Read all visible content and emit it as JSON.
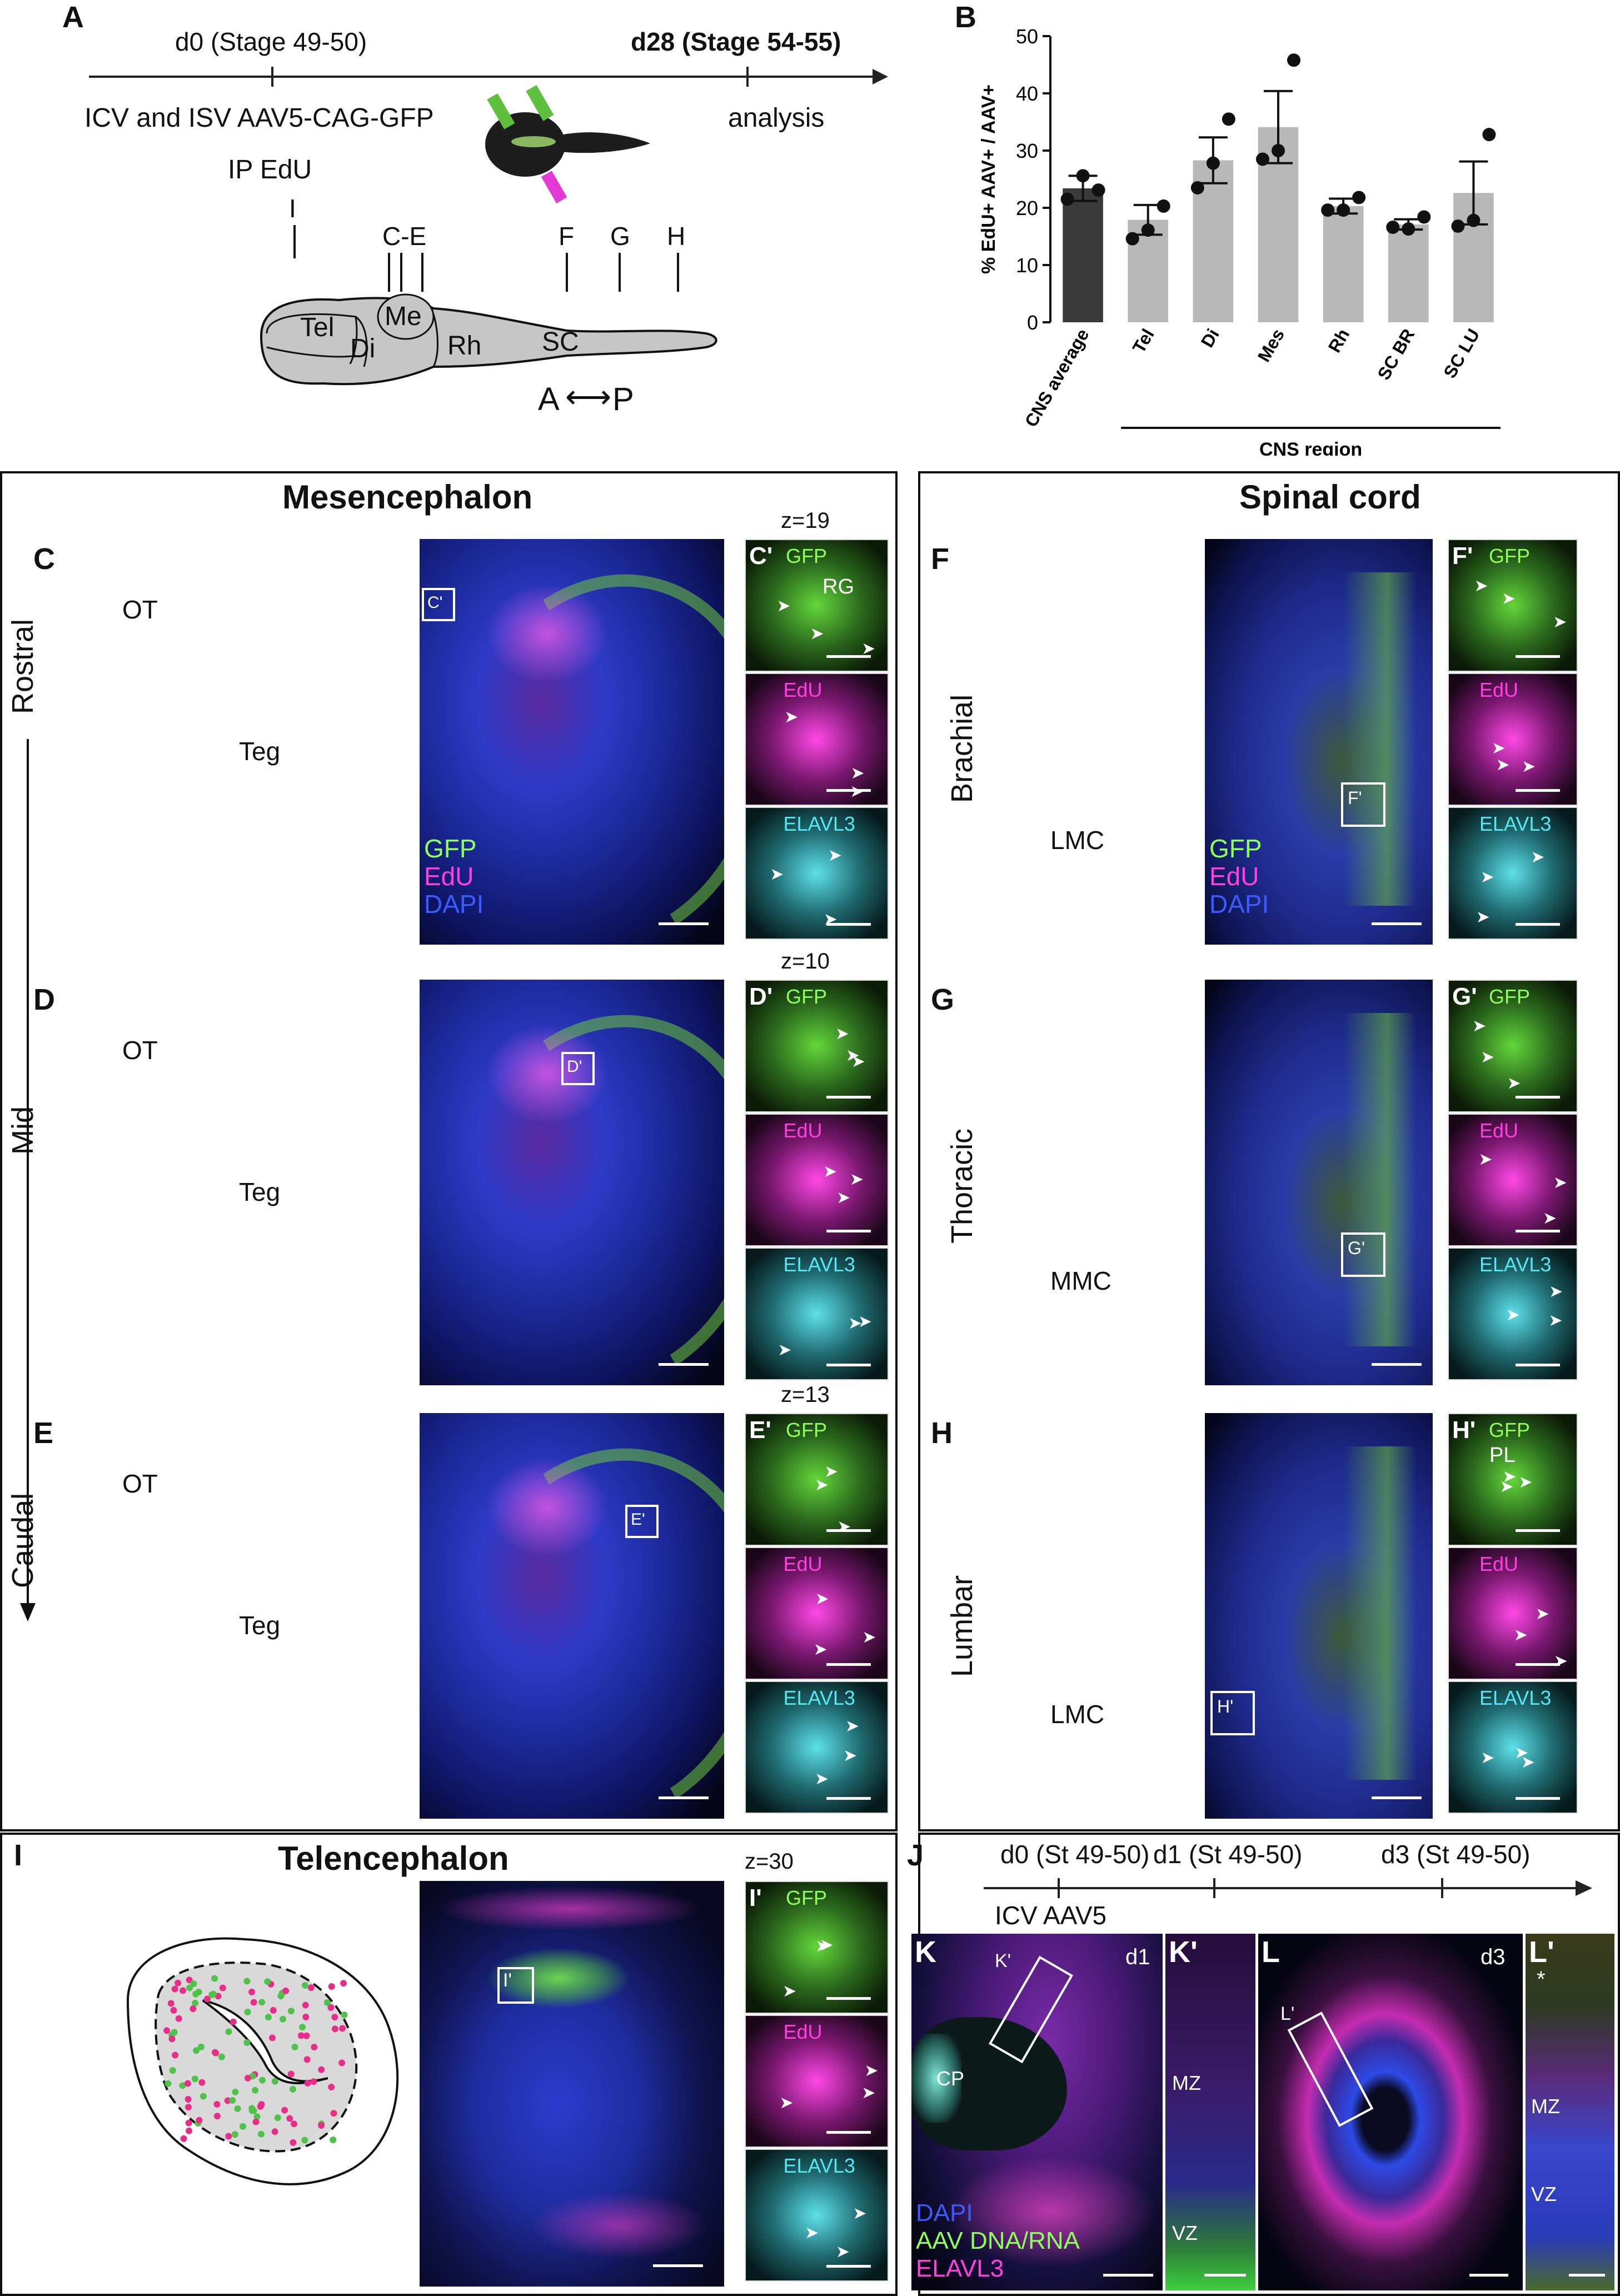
{
  "colors": {
    "gfp": "#6cd43a",
    "edu": "#e82e8b",
    "elavl3": "#3fd3dd",
    "dapi": "#2c3be0",
    "bar_dark": "#3a3a3a",
    "bar_light": "#b8b8b8"
  },
  "panel_a": {
    "label": "A",
    "t0": "d0 (Stage 49-50)",
    "t1": "d28 (Stage 54-55)",
    "injection": "ICV and ISV AAV5-CAG-GFP",
    "ip": "IP EdU",
    "analysis": "analysis",
    "section_marks": [
      "I",
      "C-E",
      "F",
      "G",
      "H"
    ],
    "regions": [
      "Tel",
      "Me",
      "Di",
      "Rh",
      "SC"
    ],
    "axis_a": "A",
    "axis_p": "P",
    "axis_arrow": "⟷"
  },
  "panel_b": {
    "label": "B"
  },
  "chart_data": {
    "type": "bar",
    "categories": [
      "CNS average",
      "Tel",
      "Di",
      "Mes",
      "Rh",
      "SC BR",
      "SC LU"
    ],
    "values": [
      23.4,
      17.9,
      28.3,
      34.1,
      20.3,
      17.1,
      22.6
    ],
    "errors": [
      2.2,
      2.6,
      4.0,
      6.3,
      1.3,
      0.9,
      5.5
    ],
    "points": [
      [
        21.5,
        25.6,
        23.1
      ],
      [
        14.6,
        16.1,
        20.3
      ],
      [
        23.5,
        27.8,
        35.5
      ],
      [
        28.5,
        30.0,
        45.8
      ],
      [
        19.6,
        19.6,
        21.8
      ],
      [
        16.6,
        16.3,
        18.4
      ],
      [
        16.8,
        17.8,
        32.8
      ]
    ],
    "ylabel": "% EdU+ AAV+ / AAV+",
    "xlabel": "CNS region",
    "ylim": [
      0,
      50
    ],
    "yticks": [
      "0",
      "10",
      "20",
      "30",
      "40",
      "50"
    ]
  },
  "mesencephalon": {
    "title": "Mesencephalon",
    "rows": [
      {
        "label": "C",
        "row": "Rostral",
        "z": "z=19",
        "inset": "C'",
        "sub": "C'",
        "region1": "OT",
        "region2": "Teg",
        "extra": "RG"
      },
      {
        "label": "D",
        "row": "Mid",
        "z": "z=10",
        "inset": "D'",
        "sub": "D'",
        "region1": "OT",
        "region2": "Teg",
        "extra": ""
      },
      {
        "label": "E",
        "row": "Caudal",
        "z": "z=13",
        "inset": "E'",
        "sub": "E'",
        "region1": "OT",
        "region2": "Teg",
        "extra": ""
      }
    ],
    "channels": [
      "GFP",
      "EdU",
      "DAPI"
    ]
  },
  "spinal": {
    "title": "Spinal cord",
    "rows": [
      {
        "label": "F",
        "row": "Brachial",
        "inset": "F'",
        "sub": "F'",
        "region": "LMC",
        "extra": ""
      },
      {
        "label": "G",
        "row": "Thoracic",
        "inset": "G'",
        "sub": "G'",
        "region": "MMC",
        "extra": ""
      },
      {
        "label": "H",
        "row": "Lumbar",
        "inset": "H'",
        "sub": "H'",
        "region": "LMC",
        "extra": "PL"
      }
    ]
  },
  "channels_small": [
    "GFP",
    "EdU",
    "ELAVL3"
  ],
  "telencephalon": {
    "label": "I",
    "title": "Telencephalon",
    "z": "z=30",
    "inset": "I'",
    "sub": "I'"
  },
  "panel_j": {
    "label": "J",
    "t0": "d0 (St 49-50)",
    "t1": "d1 (St 49-50)",
    "t2": "d3 (St 49-50)",
    "injection": "ICV AAV5",
    "k": "K",
    "kp": "K'",
    "l": "L",
    "lp": "L'",
    "d1": "d1",
    "d3": "d3",
    "cp": "CP",
    "mz": "MZ",
    "vz": "VZ",
    "legend": [
      "DAPI",
      "AAV DNA/RNA",
      "ELAVL3"
    ],
    "star": "*"
  }
}
